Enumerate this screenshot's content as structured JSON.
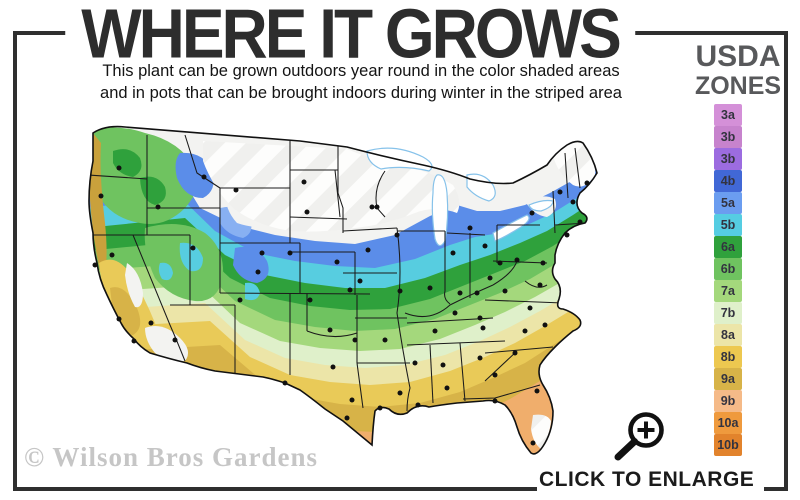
{
  "header": {
    "title": "WHERE IT GROWS",
    "subtitle_line1": "This plant can be grown outdoors year round in the color shaded areas",
    "subtitle_line2": "and in pots that can be brought indoors during winter in the striped area"
  },
  "legend": {
    "title_line1": "USDA",
    "title_line2": "ZONES",
    "items": [
      {
        "label": "3a",
        "color": "#d490d8"
      },
      {
        "label": "3b",
        "color": "#c783cd"
      },
      {
        "label": "3b",
        "color": "#9c6ce0"
      },
      {
        "label": "4b",
        "color": "#4168d6"
      },
      {
        "label": "5a",
        "color": "#6b9df0"
      },
      {
        "label": "5b",
        "color": "#55cde2"
      },
      {
        "label": "6a",
        "color": "#2fa13c"
      },
      {
        "label": "6b",
        "color": "#6fc360"
      },
      {
        "label": "7a",
        "color": "#a4d87c"
      },
      {
        "label": "7b",
        "color": "#dff0ca"
      },
      {
        "label": "8a",
        "color": "#ece5a8"
      },
      {
        "label": "8b",
        "color": "#edc850"
      },
      {
        "label": "9a",
        "color": "#d7b348"
      },
      {
        "label": "9b",
        "color": "#f5ba88"
      },
      {
        "label": "10a",
        "color": "#ef9a3d"
      },
      {
        "label": "10b",
        "color": "#e2832c"
      }
    ]
  },
  "watermark": "© Wilson Bros Gardens",
  "enlarge_label": "CLICK TO ENLARGE",
  "map": {
    "zone_fills": {
      "white_base": "#f3f3f1",
      "blue": "#5b8de9",
      "blue_light": "#88b0f2",
      "cyan": "#57cde0",
      "green_dark": "#2fa13c",
      "green_med": "#6fc360",
      "green_light": "#a4d87c",
      "green_pale": "#dff0ca",
      "cream": "#ece5a8",
      "yellow": "#e9ca58",
      "gold": "#d7b348",
      "mustard": "#c9a13c",
      "peach": "#f0ae6c",
      "lake": "#ffffff",
      "lake_stroke": "#86c2ea",
      "line": "#1b1b1b"
    },
    "dots": [
      [
        34,
        55
      ],
      [
        16,
        83
      ],
      [
        10,
        152
      ],
      [
        27,
        142
      ],
      [
        34,
        206
      ],
      [
        49,
        228
      ],
      [
        73,
        94
      ],
      [
        119,
        64
      ],
      [
        151,
        77
      ],
      [
        219,
        69
      ],
      [
        222,
        99
      ],
      [
        108,
        135
      ],
      [
        66,
        210
      ],
      [
        90,
        227
      ],
      [
        155,
        187
      ],
      [
        177,
        140
      ],
      [
        173,
        159
      ],
      [
        205,
        140
      ],
      [
        252,
        149
      ],
      [
        225,
        187
      ],
      [
        265,
        177
      ],
      [
        245,
        217
      ],
      [
        270,
        227
      ],
      [
        248,
        254
      ],
      [
        267,
        287
      ],
      [
        262,
        305
      ],
      [
        295,
        295
      ],
      [
        200,
        270
      ],
      [
        287,
        94
      ],
      [
        292,
        94
      ],
      [
        312,
        122
      ],
      [
        283,
        137
      ],
      [
        275,
        168
      ],
      [
        315,
        178
      ],
      [
        300,
        227
      ],
      [
        315,
        280
      ],
      [
        333,
        292
      ],
      [
        368,
        140
      ],
      [
        345,
        175
      ],
      [
        375,
        180
      ],
      [
        400,
        133
      ],
      [
        385,
        115
      ],
      [
        405,
        165
      ],
      [
        415,
        150
      ],
      [
        392,
        180
      ],
      [
        370,
        200
      ],
      [
        395,
        205
      ],
      [
        350,
        218
      ],
      [
        398,
        215
      ],
      [
        330,
        250
      ],
      [
        358,
        252
      ],
      [
        362,
        275
      ],
      [
        395,
        245
      ],
      [
        410,
        262
      ],
      [
        430,
        240
      ],
      [
        440,
        218
      ],
      [
        460,
        212
      ],
      [
        445,
        195
      ],
      [
        420,
        178
      ],
      [
        432,
        147
      ],
      [
        458,
        150
      ],
      [
        447,
        100
      ],
      [
        475,
        79
      ],
      [
        488,
        89
      ],
      [
        495,
        109
      ],
      [
        482,
        122
      ],
      [
        502,
        70
      ],
      [
        455,
        172
      ],
      [
        448,
        330
      ],
      [
        452,
        278
      ],
      [
        410,
        288
      ]
    ]
  }
}
